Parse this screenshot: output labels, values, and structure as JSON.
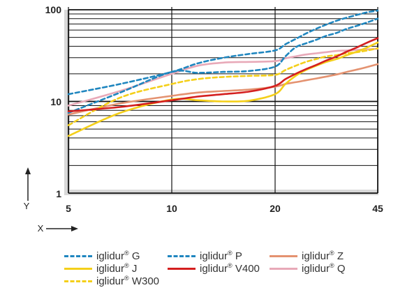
{
  "chart_data": {
    "type": "line",
    "title": "",
    "xlabel": "X",
    "ylabel": "Y",
    "x_ticks": [
      "5",
      "10",
      "20",
      "45"
    ],
    "y_ticks": [
      "1",
      "10",
      "100"
    ],
    "x_range": [
      5,
      45
    ],
    "y_range": [
      1,
      100
    ],
    "y_scale": "log",
    "grid": true,
    "legend_position": "bottom",
    "x": [
      5,
      7.5,
      10,
      12.5,
      15,
      17.5,
      20,
      22.5,
      25,
      27.5,
      30,
      32.5,
      35,
      37.5,
      40,
      42.5,
      45
    ],
    "series": [
      {
        "name": "iglidur® G",
        "brand": "iglidur",
        "suffix": "G",
        "color": "#1f86bf",
        "dash": "dashed",
        "values": [
          7.5,
          12.5,
          21,
          20.5,
          21,
          21.5,
          24,
          31,
          39,
          43,
          47,
          52,
          56,
          62,
          67,
          73,
          80
        ]
      },
      {
        "name": "iglidur® J",
        "brand": "iglidur",
        "suffix": "J",
        "color": "#f4cf1a",
        "dash": "solid",
        "values": [
          4.2,
          7.5,
          10.5,
          10.3,
          10.0,
          10.2,
          12.0,
          15.5,
          19,
          22,
          24.5,
          27,
          29,
          32,
          35,
          39,
          44
        ]
      },
      {
        "name": "iglidur® W300",
        "brand": "iglidur",
        "suffix": "W300",
        "color": "#f4cf1a",
        "dash": "dashed",
        "values": [
          5.5,
          11.0,
          15.5,
          17.5,
          18.5,
          19.0,
          19.5,
          22,
          24.5,
          27,
          29,
          31,
          32,
          33.5,
          34.5,
          36,
          38
        ]
      },
      {
        "name": "iglidur® P",
        "brand": "iglidur",
        "suffix": "P",
        "color": "#1f86bf",
        "dash": "dashed",
        "values": [
          12.0,
          15.5,
          21,
          26,
          30,
          33,
          36,
          42,
          48,
          55,
          62,
          69,
          76,
          82,
          88,
          94,
          98
        ]
      },
      {
        "name": "iglidur® V400",
        "brand": "iglidur",
        "suffix": "V400",
        "color": "#d41f1f",
        "dash": "solid",
        "values": [
          7.8,
          8.7,
          10.3,
          11.3,
          12.0,
          12.8,
          14.8,
          17.5,
          20,
          22.5,
          25,
          28,
          31,
          35,
          39,
          44,
          49
        ]
      },
      {
        "name": "iglidur® Z",
        "brand": "iglidur",
        "suffix": "Z",
        "color": "#e49270",
        "dash": "solid",
        "values": [
          7.2,
          9.5,
          11.5,
          12.5,
          13.0,
          13.5,
          14.5,
          15.5,
          16.2,
          17,
          17.8,
          18.7,
          19.7,
          21,
          22.3,
          23.8,
          25.5
        ]
      },
      {
        "name": "iglidur® Q",
        "brand": "iglidur",
        "suffix": "Q",
        "color": "#e8a9b8",
        "dash": "solid",
        "values": [
          9.0,
          13.0,
          20,
          24.5,
          26.5,
          27.0,
          27.5,
          29.5,
          31,
          32.5,
          33.5,
          34.5,
          35.5,
          36,
          36.5,
          37,
          37.5
        ]
      }
    ]
  }
}
